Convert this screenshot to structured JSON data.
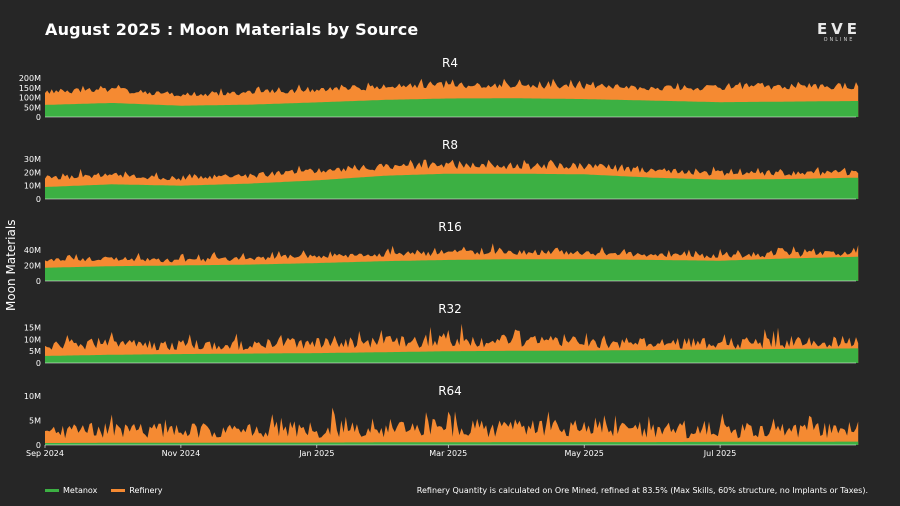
{
  "title": "August 2025 : Moon Materials by Source",
  "logo": {
    "main": "EVE",
    "sub": "ONLINE"
  },
  "footnote": "Refinery Quantity is calculated on Ore Mined, refined at 83.5% (Max Skills, 60% structure, no Implants or Taxes).",
  "colors": {
    "metanox": "#3cb043",
    "refinery": "#f58a32",
    "background": "#262626"
  },
  "chart_data": {
    "type": "area",
    "stacked": true,
    "ylabel": "Moon Materials",
    "x_range": [
      "2024-09-01",
      "2025-08-31"
    ],
    "x_ticks": [
      {
        "date": "2024-09-01",
        "label": "Sep 2024"
      },
      {
        "date": "2024-11-01",
        "label": "Nov 2024"
      },
      {
        "date": "2025-01-01",
        "label": "Jan 2025"
      },
      {
        "date": "2025-03-01",
        "label": "Mar 2025"
      },
      {
        "date": "2025-05-01",
        "label": "May 2025"
      },
      {
        "date": "2025-07-01",
        "label": "Jul 2025"
      }
    ],
    "legend": [
      {
        "name": "Metanox",
        "color": "#3cb043"
      },
      {
        "name": "Refinery",
        "color": "#f58a32"
      }
    ],
    "legend_position": "bottom-left",
    "panels": [
      {
        "title": "R4",
        "ylim": [
          0,
          200000000
        ],
        "yticks": [
          {
            "value": 0,
            "label": "0"
          },
          {
            "value": 50000000,
            "label": "50M"
          },
          {
            "value": 100000000,
            "label": "100M"
          },
          {
            "value": 150000000,
            "label": "150M"
          },
          {
            "value": 200000000,
            "label": "200M"
          }
        ],
        "series": [
          {
            "name": "Metanox",
            "stack": "base",
            "x": [
              "2024-09-01",
              "2024-10-01",
              "2024-11-01",
              "2024-12-01",
              "2025-01-01",
              "2025-02-01",
              "2025-03-01",
              "2025-04-01",
              "2025-05-01",
              "2025-06-01",
              "2025-07-01",
              "2025-08-01",
              "2025-08-31"
            ],
            "values": [
              62000000,
              72000000,
              58000000,
              63000000,
              75000000,
              88000000,
              95000000,
              96000000,
              92000000,
              84000000,
              76000000,
              79000000,
              82000000
            ]
          },
          {
            "name": "Refinery",
            "stack": "top",
            "x": [
              "2024-09-01",
              "2024-10-01",
              "2024-11-01",
              "2024-12-01",
              "2025-01-01",
              "2025-02-01",
              "2025-03-01",
              "2025-04-01",
              "2025-05-01",
              "2025-06-01",
              "2025-07-01",
              "2025-08-01",
              "2025-08-31"
            ],
            "values": [
              130000000,
              140000000,
              110000000,
              125000000,
              140000000,
              155000000,
              165000000,
              160000000,
              158000000,
              150000000,
              150000000,
              152000000,
              158000000
            ]
          }
        ]
      },
      {
        "title": "R8",
        "ylim": [
          0,
          30000000
        ],
        "yticks": [
          {
            "value": 0,
            "label": "0"
          },
          {
            "value": 10000000,
            "label": "10M"
          },
          {
            "value": 20000000,
            "label": "20M"
          },
          {
            "value": 30000000,
            "label": "30M"
          }
        ],
        "series": [
          {
            "name": "Metanox",
            "stack": "base",
            "x": [
              "2024-09-01",
              "2024-10-01",
              "2024-11-01",
              "2024-12-01",
              "2025-01-01",
              "2025-02-01",
              "2025-03-01",
              "2025-04-01",
              "2025-05-01",
              "2025-06-01",
              "2025-07-01",
              "2025-08-01",
              "2025-08-31"
            ],
            "values": [
              9000000,
              11000000,
              10000000,
              11500000,
              14000000,
              17500000,
              19000000,
              19000000,
              18500000,
              16000000,
              14500000,
              15000000,
              16000000
            ]
          },
          {
            "name": "Refinery",
            "stack": "top",
            "x": [
              "2024-09-01",
              "2024-10-01",
              "2024-11-01",
              "2024-12-01",
              "2025-01-01",
              "2025-02-01",
              "2025-03-01",
              "2025-04-01",
              "2025-05-01",
              "2025-06-01",
              "2025-07-01",
              "2025-08-01",
              "2025-08-31"
            ],
            "values": [
              16000000,
              18000000,
              15500000,
              17500000,
              21000000,
              24000000,
              25500000,
              25000000,
              24500000,
              21500000,
              19500000,
              19500000,
              20000000
            ]
          }
        ]
      },
      {
        "title": "R16",
        "ylim": [
          0,
          50000000
        ],
        "yticks": [
          {
            "value": 0,
            "label": "0"
          },
          {
            "value": 20000000,
            "label": "20M"
          },
          {
            "value": 40000000,
            "label": "40M"
          }
        ],
        "series": [
          {
            "name": "Metanox",
            "stack": "base",
            "x": [
              "2024-09-01",
              "2024-10-01",
              "2024-11-01",
              "2024-12-01",
              "2025-01-01",
              "2025-02-01",
              "2025-03-01",
              "2025-04-01",
              "2025-05-01",
              "2025-06-01",
              "2025-07-01",
              "2025-08-01",
              "2025-08-31"
            ],
            "values": [
              17000000,
              19000000,
              20000000,
              21000000,
              23000000,
              25500000,
              27000000,
              28000000,
              28000000,
              27000000,
              26000000,
              29000000,
              31000000
            ]
          },
          {
            "name": "Refinery",
            "stack": "top",
            "x": [
              "2024-09-01",
              "2024-10-01",
              "2024-11-01",
              "2024-12-01",
              "2025-01-01",
              "2025-02-01",
              "2025-03-01",
              "2025-04-01",
              "2025-05-01",
              "2025-06-01",
              "2025-07-01",
              "2025-08-01",
              "2025-08-31"
            ],
            "values": [
              27000000,
              29000000,
              26000000,
              29000000,
              32000000,
              34000000,
              36000000,
              37000000,
              36000000,
              34000000,
              32000000,
              34000000,
              36000000
            ]
          }
        ]
      },
      {
        "title": "R32",
        "ylim": [
          0,
          17000000
        ],
        "yticks": [
          {
            "value": 0,
            "label": "0"
          },
          {
            "value": 5000000,
            "label": "5M"
          },
          {
            "value": 10000000,
            "label": "10M"
          },
          {
            "value": 15000000,
            "label": "15M"
          }
        ],
        "series": [
          {
            "name": "Metanox",
            "stack": "base",
            "x": [
              "2024-09-01",
              "2024-10-01",
              "2024-11-01",
              "2024-12-01",
              "2025-01-01",
              "2025-02-01",
              "2025-03-01",
              "2025-04-01",
              "2025-05-01",
              "2025-06-01",
              "2025-07-01",
              "2025-08-01",
              "2025-08-31"
            ],
            "values": [
              3000000,
              3500000,
              3800000,
              4000000,
              4200000,
              4600000,
              5000000,
              5200000,
              5300000,
              5500000,
              5700000,
              6000000,
              6200000
            ]
          },
          {
            "name": "Refinery",
            "stack": "top",
            "x": [
              "2024-09-01",
              "2024-10-01",
              "2024-11-01",
              "2024-12-01",
              "2025-01-01",
              "2025-02-01",
              "2025-03-01",
              "2025-04-01",
              "2025-05-01",
              "2025-06-01",
              "2025-07-01",
              "2025-08-01",
              "2025-08-31"
            ],
            "values": [
              7500000,
              8000000,
              7500000,
              7800000,
              8500000,
              9000000,
              9500000,
              9300000,
              9000000,
              8500000,
              8200000,
              8800000,
              9000000
            ]
          }
        ]
      },
      {
        "title": "R64",
        "ylim": [
          0,
          10000000
        ],
        "yticks": [
          {
            "value": 0,
            "label": "0"
          },
          {
            "value": 5000000,
            "label": "5M"
          },
          {
            "value": 10000000,
            "label": "10M"
          }
        ],
        "series": [
          {
            "name": "Metanox",
            "stack": "base",
            "x": [
              "2024-09-01",
              "2024-10-01",
              "2024-11-01",
              "2024-12-01",
              "2025-01-01",
              "2025-02-01",
              "2025-03-01",
              "2025-04-01",
              "2025-05-01",
              "2025-06-01",
              "2025-07-01",
              "2025-08-01",
              "2025-08-31"
            ],
            "values": [
              400000,
              450000,
              450000,
              500000,
              500000,
              550000,
              550000,
              600000,
              600000,
              600000,
              650000,
              650000,
              700000
            ]
          },
          {
            "name": "Refinery",
            "stack": "top",
            "x": [
              "2024-09-01",
              "2024-10-01",
              "2024-11-01",
              "2024-12-01",
              "2025-01-01",
              "2025-02-01",
              "2025-03-01",
              "2025-04-01",
              "2025-05-01",
              "2025-06-01",
              "2025-07-01",
              "2025-08-01",
              "2025-08-31"
            ],
            "values": [
              2800000,
              3000000,
              2800000,
              3000000,
              3200000,
              3400000,
              3500000,
              3400000,
              3300000,
              3100000,
              2900000,
              3000000,
              3100000
            ]
          }
        ]
      }
    ]
  }
}
